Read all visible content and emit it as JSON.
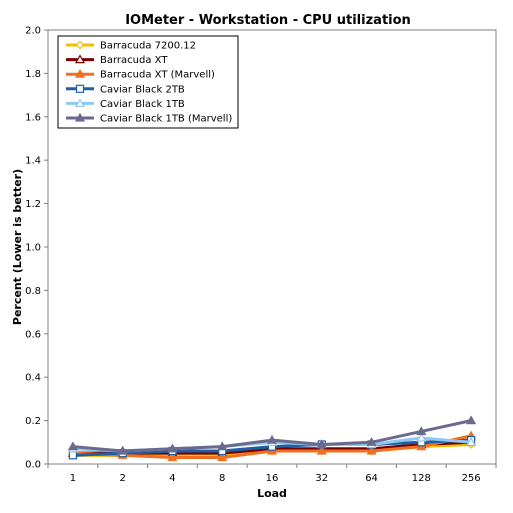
{
  "chart_data": {
    "type": "line",
    "title": "IOMeter - Workstation - CPU utilization",
    "xlabel": "Load",
    "ylabel": "Percent (Lower is better)",
    "categories": [
      "1",
      "2",
      "4",
      "8",
      "16",
      "32",
      "64",
      "128",
      "256"
    ],
    "ylim": [
      0,
      2.0
    ],
    "yticks": [
      "0.0",
      "0.2",
      "0.4",
      "0.6",
      "0.8",
      "1.0",
      "1.2",
      "1.4",
      "1.6",
      "1.8",
      "2.0"
    ],
    "grid": false,
    "legend_position": "top-left",
    "series": [
      {
        "name": "Barracuda 7200.12",
        "color": "#f0c000",
        "marker": "diamond",
        "values": [
          0.04,
          0.04,
          0.04,
          0.04,
          0.06,
          0.06,
          0.06,
          0.08,
          0.09
        ]
      },
      {
        "name": "Barracuda XT",
        "color": "#7a0000",
        "marker": "triangle-open",
        "values": [
          0.05,
          0.05,
          0.05,
          0.05,
          0.07,
          0.07,
          0.07,
          0.09,
          0.1
        ]
      },
      {
        "name": "Barracuda XT (Marvell)",
        "color": "#f07020",
        "marker": "triangle",
        "values": [
          0.05,
          0.04,
          0.03,
          0.03,
          0.06,
          0.06,
          0.06,
          0.08,
          0.13
        ]
      },
      {
        "name": "Caviar Black 2TB",
        "color": "#1f5fa8",
        "marker": "square-open",
        "values": [
          0.04,
          0.05,
          0.06,
          0.06,
          0.08,
          0.09,
          0.09,
          0.1,
          0.11
        ]
      },
      {
        "name": "Caviar Black 1TB",
        "color": "#8fc8f0",
        "marker": "triangle-open",
        "values": [
          0.07,
          0.06,
          0.07,
          0.08,
          0.1,
          0.09,
          0.09,
          0.12,
          0.1
        ]
      },
      {
        "name": "Caviar Black 1TB (Marvell)",
        "color": "#6a6a8e",
        "marker": "triangle",
        "values": [
          0.08,
          0.06,
          0.07,
          0.08,
          0.11,
          0.09,
          0.1,
          0.15,
          0.2
        ]
      }
    ]
  }
}
